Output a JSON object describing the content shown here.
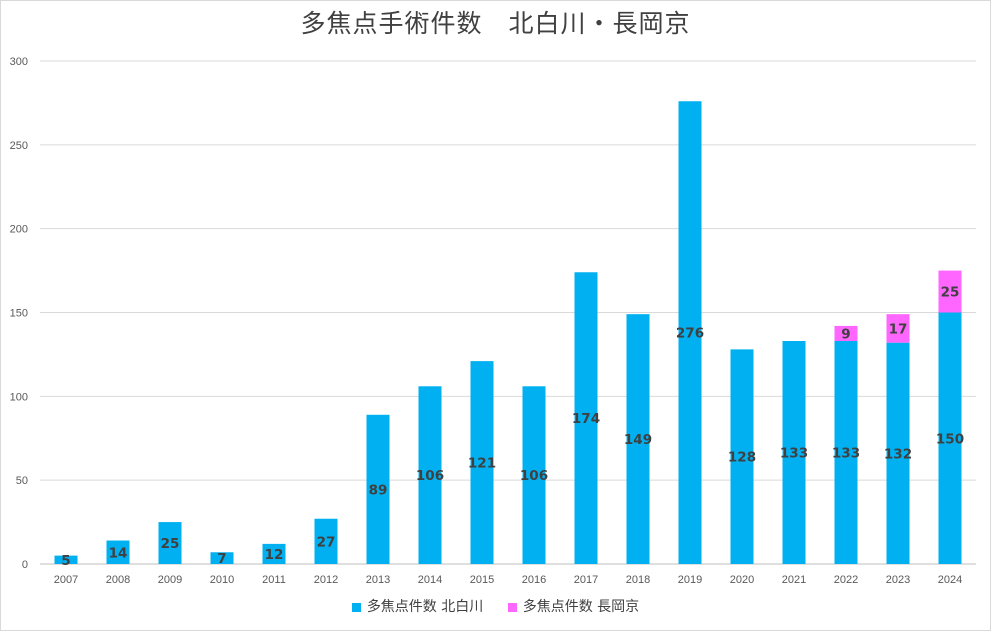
{
  "title": "多焦点手術件数　北白川・長岡京",
  "chart_data": {
    "type": "bar",
    "stacked": true,
    "title": "多焦点手術件数　北白川・長岡京",
    "categories": [
      "2007",
      "2008",
      "2009",
      "2010",
      "2011",
      "2012",
      "2013",
      "2014",
      "2015",
      "2016",
      "2017",
      "2018",
      "2019",
      "2020",
      "2021",
      "2022",
      "2023",
      "2024"
    ],
    "series": [
      {
        "name": "多焦点件数 北白川",
        "color": "#00b0f0",
        "values": [
          5,
          14,
          25,
          7,
          12,
          27,
          89,
          106,
          121,
          106,
          174,
          149,
          276,
          128,
          133,
          133,
          132,
          150
        ]
      },
      {
        "name": "多焦点件数 長岡京",
        "color": "#ff66ff",
        "values": [
          null,
          null,
          null,
          null,
          null,
          null,
          null,
          null,
          null,
          null,
          null,
          null,
          null,
          null,
          null,
          9,
          17,
          25
        ]
      }
    ],
    "yticks": [
      0,
      50,
      100,
      150,
      200,
      250,
      300
    ],
    "ylim": [
      0,
      300
    ],
    "grid": true,
    "legend": "bottom"
  }
}
